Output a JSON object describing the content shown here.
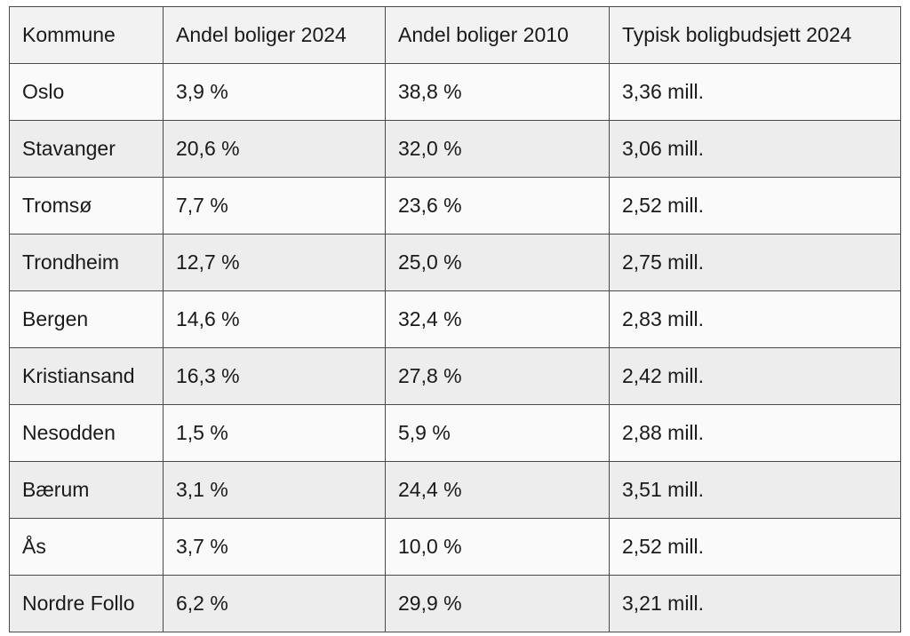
{
  "table": {
    "headers": [
      "Kommune",
      "Andel boliger 2024",
      "Andel boliger 2010",
      "Typisk boligbudsjett 2024"
    ],
    "rows": [
      [
        "Oslo",
        "3,9 %",
        "38,8 %",
        "3,36 mill."
      ],
      [
        "Stavanger",
        "20,6 %",
        "32,0 %",
        "3,06 mill."
      ],
      [
        "Tromsø",
        "7,7 %",
        "23,6 %",
        "2,52 mill."
      ],
      [
        "Trondheim",
        "12,7 %",
        "25,0 %",
        "2,75 mill."
      ],
      [
        "Bergen",
        "14,6 %",
        "32,4 %",
        "2,83 mill."
      ],
      [
        "Kristiansand",
        "16,3 %",
        "27,8 %",
        "2,42 mill."
      ],
      [
        "Nesodden",
        "1,5 %",
        "5,9 %",
        "2,88 mill."
      ],
      [
        "Bærum",
        "3,1 %",
        "24,4 %",
        "3,51 mill."
      ],
      [
        "Ås",
        "3,7 %",
        "10,0 %",
        "2,52 mill."
      ],
      [
        "Nordre Follo",
        "6,2 %",
        "29,9 %",
        "3,21 mill."
      ]
    ]
  }
}
